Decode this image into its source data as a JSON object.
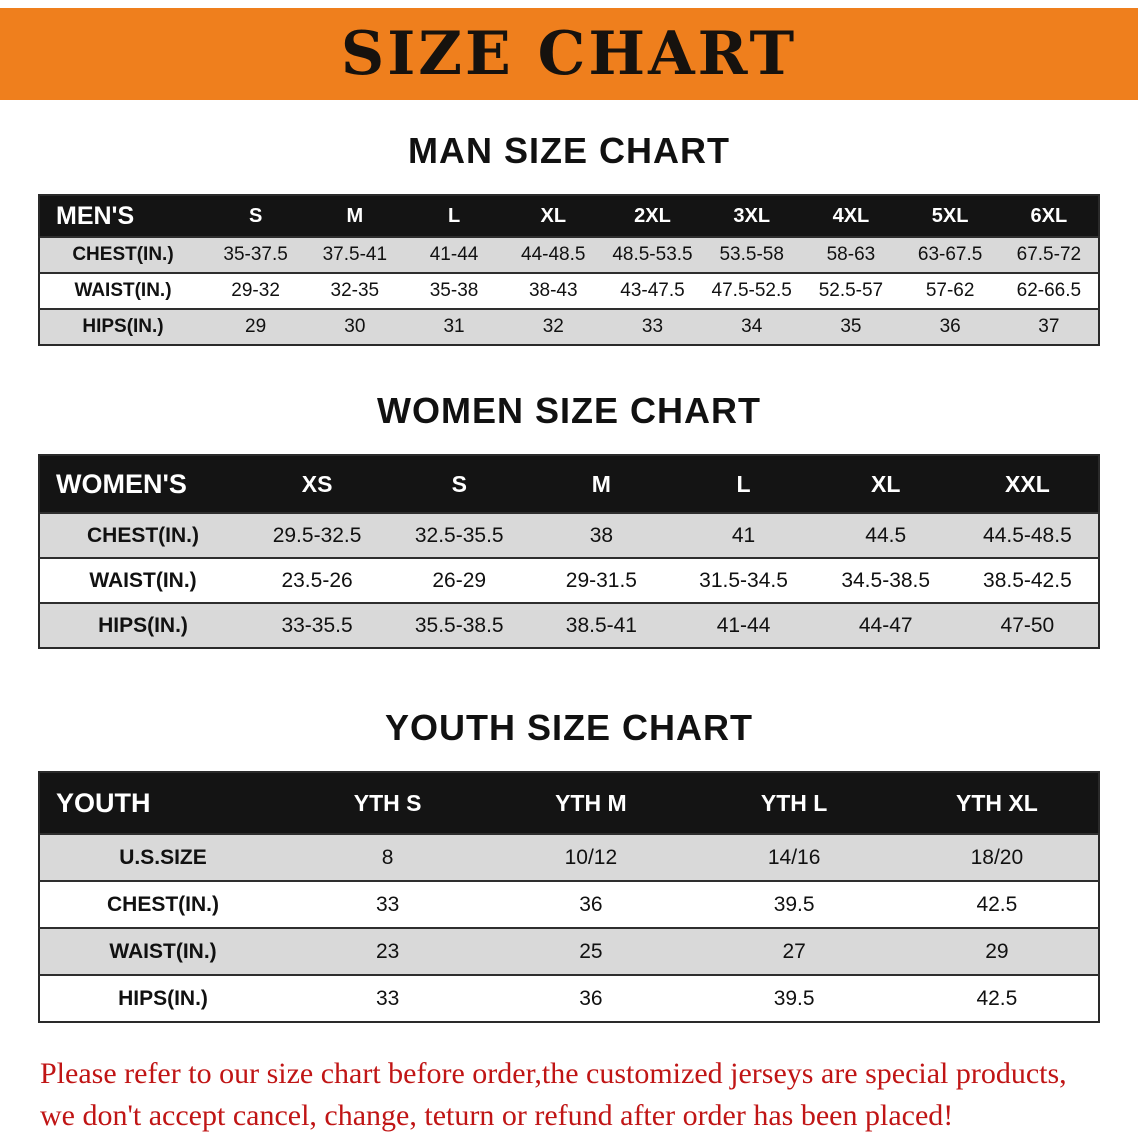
{
  "banner": {
    "title": "SIZE CHART"
  },
  "colors": {
    "banner_orange": "#ef7f1d",
    "header_black": "#141414",
    "row_gray": "#d9d9d9",
    "row_white": "#ffffff",
    "footer_red": "#c01515",
    "title_black": "#111111"
  },
  "chart_data": [
    {
      "type": "table",
      "title": "MAN SIZE CHART",
      "corner_label": "MEN'S",
      "columns": [
        "S",
        "M",
        "L",
        "XL",
        "2XL",
        "3XL",
        "4XL",
        "5XL",
        "6XL"
      ],
      "rows": [
        {
          "label": "CHEST(IN.)",
          "values": [
            "35-37.5",
            "37.5-41",
            "41-44",
            "44-48.5",
            "48.5-53.5",
            "53.5-58",
            "58-63",
            "63-67.5",
            "67.5-72"
          ]
        },
        {
          "label": "WAIST(IN.)",
          "values": [
            "29-32",
            "32-35",
            "35-38",
            "38-43",
            "43-47.5",
            "47.5-52.5",
            "52.5-57",
            "57-62",
            "62-66.5"
          ]
        },
        {
          "label": "HIPS(IN.)",
          "values": [
            "29",
            "30",
            "31",
            "32",
            "33",
            "34",
            "35",
            "36",
            "37"
          ]
        }
      ]
    },
    {
      "type": "table",
      "title": "WOMEN SIZE CHART",
      "corner_label": "WOMEN'S",
      "columns": [
        "XS",
        "S",
        "M",
        "L",
        "XL",
        "XXL"
      ],
      "rows": [
        {
          "label": "CHEST(IN.)",
          "values": [
            "29.5-32.5",
            "32.5-35.5",
            "38",
            "41",
            "44.5",
            "44.5-48.5"
          ]
        },
        {
          "label": "WAIST(IN.)",
          "values": [
            "23.5-26",
            "26-29",
            "29-31.5",
            "31.5-34.5",
            "34.5-38.5",
            "38.5-42.5"
          ]
        },
        {
          "label": "HIPS(IN.)",
          "values": [
            "33-35.5",
            "35.5-38.5",
            "38.5-41",
            "41-44",
            "44-47",
            "47-50"
          ]
        }
      ]
    },
    {
      "type": "table",
      "title": "YOUTH SIZE CHART",
      "corner_label": "YOUTH",
      "columns": [
        "YTH S",
        "YTH M",
        "YTH L",
        "YTH XL"
      ],
      "rows": [
        {
          "label": "U.S.SIZE",
          "values": [
            "8",
            "10/12",
            "14/16",
            "18/20"
          ]
        },
        {
          "label": "CHEST(IN.)",
          "values": [
            "33",
            "36",
            "39.5",
            "42.5"
          ]
        },
        {
          "label": "WAIST(IN.)",
          "values": [
            "23",
            "25",
            "27",
            "29"
          ]
        },
        {
          "label": "HIPS(IN.)",
          "values": [
            "33",
            "36",
            "39.5",
            "42.5"
          ]
        }
      ]
    }
  ],
  "footer": {
    "line1": "Please refer to our size chart before order,the customized jerseys are special products,",
    "line2": "we don't accept cancel, change, teturn or refund after order has been placed!"
  }
}
